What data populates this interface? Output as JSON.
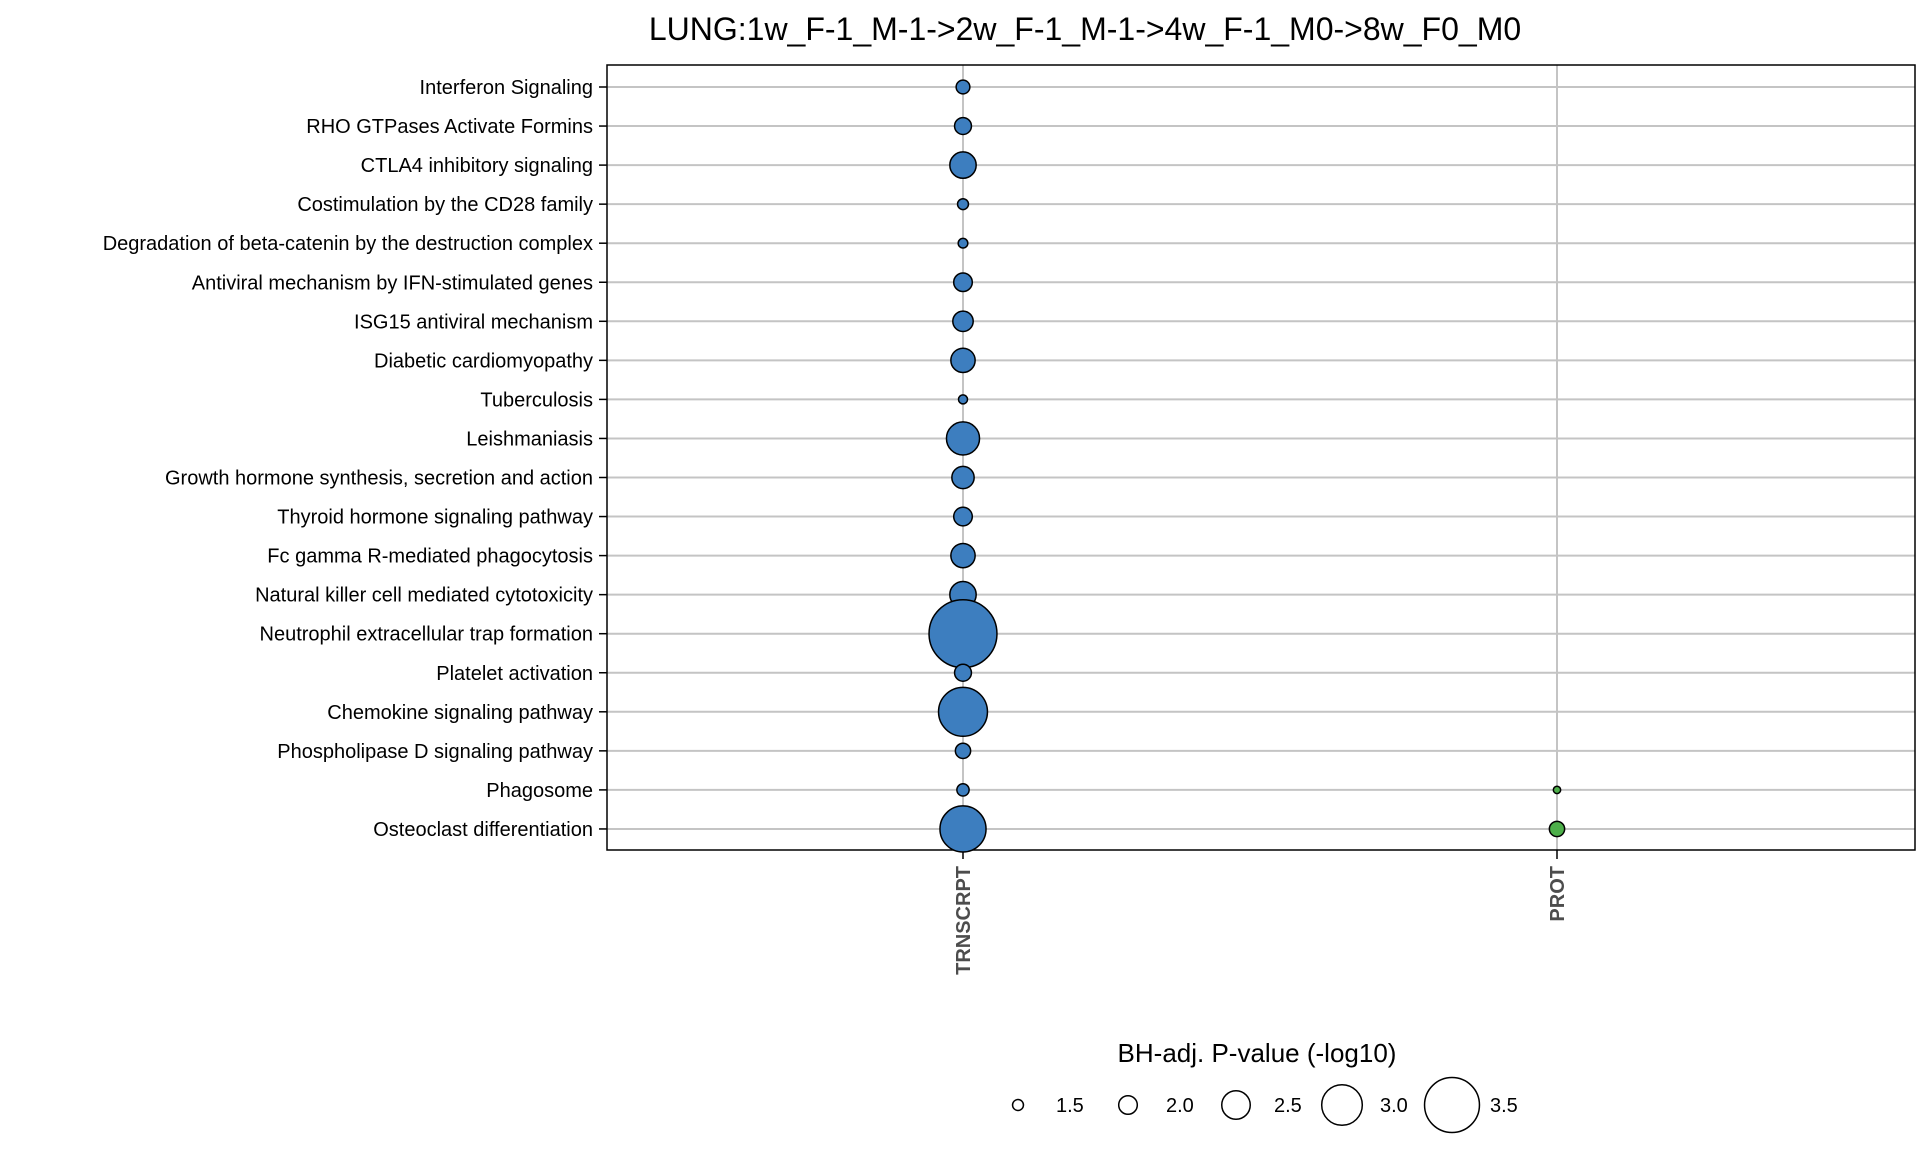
{
  "chart_data": {
    "type": "scatter",
    "title": "LUNG:1w_F-1_M-1->2w_F-1_M-1->4w_F-1_M0->8w_F0_M0",
    "xlabel": "",
    "ylabel": "",
    "categories_x": [
      "TRNSCRPT",
      "PROT"
    ],
    "categories_y": [
      "Interferon Signaling",
      "RHO GTPases Activate Formins",
      "CTLA4 inhibitory signaling",
      "Costimulation by the CD28 family",
      "Degradation of beta-catenin by the destruction complex",
      "Antiviral mechanism by IFN-stimulated genes",
      "ISG15 antiviral mechanism",
      "Diabetic cardiomyopathy",
      "Tuberculosis",
      "Leishmaniasis",
      "Growth hormone synthesis, secretion and action",
      "Thyroid hormone signaling pathway",
      "Fc gamma R-mediated phagocytosis",
      "Natural killer cell mediated cytotoxicity",
      "Neutrophil extracellular trap formation",
      "Platelet activation",
      "Chemokine signaling pathway",
      "Phospholipase D signaling pathway",
      "Phagosome",
      "Osteoclast differentiation"
    ],
    "points": [
      {
        "x": "TRNSCRPT",
        "y": "Interferon Signaling",
        "size": 1.7,
        "color": "#3d7ebf"
      },
      {
        "x": "TRNSCRPT",
        "y": "RHO GTPases Activate Formins",
        "size": 1.9,
        "color": "#3d7ebf"
      },
      {
        "x": "TRNSCRPT",
        "y": "CTLA4 inhibitory signaling",
        "size": 2.4,
        "color": "#3d7ebf"
      },
      {
        "x": "TRNSCRPT",
        "y": "Costimulation by the CD28 family",
        "size": 1.5,
        "color": "#3d7ebf"
      },
      {
        "x": "TRNSCRPT",
        "y": "Degradation of beta-catenin by the destruction complex",
        "size": 1.4,
        "color": "#3d7ebf"
      },
      {
        "x": "TRNSCRPT",
        "y": "Antiviral mechanism by IFN-stimulated genes",
        "size": 2.0,
        "color": "#3d7ebf"
      },
      {
        "x": "TRNSCRPT",
        "y": "ISG15 antiviral mechanism",
        "size": 2.1,
        "color": "#3d7ebf"
      },
      {
        "x": "TRNSCRPT",
        "y": "Diabetic cardiomyopathy",
        "size": 2.3,
        "color": "#3d7ebf"
      },
      {
        "x": "TRNSCRPT",
        "y": "Tuberculosis",
        "size": 1.35,
        "color": "#3d7ebf"
      },
      {
        "x": "TRNSCRPT",
        "y": "Leishmaniasis",
        "size": 2.7,
        "color": "#3d7ebf"
      },
      {
        "x": "TRNSCRPT",
        "y": "Growth hormone synthesis, secretion and action",
        "size": 2.2,
        "color": "#3d7ebf"
      },
      {
        "x": "TRNSCRPT",
        "y": "Thyroid hormone signaling pathway",
        "size": 2.0,
        "color": "#3d7ebf"
      },
      {
        "x": "TRNSCRPT",
        "y": "Fc gamma R-mediated phagocytosis",
        "size": 2.3,
        "color": "#3d7ebf"
      },
      {
        "x": "TRNSCRPT",
        "y": "Natural killer cell mediated cytotoxicity",
        "size": 2.4,
        "color": "#3d7ebf"
      },
      {
        "x": "TRNSCRPT",
        "y": "Neutrophil extracellular trap formation",
        "size": 3.9,
        "color": "#3d7ebf"
      },
      {
        "x": "TRNSCRPT",
        "y": "Platelet activation",
        "size": 1.9,
        "color": "#3d7ebf"
      },
      {
        "x": "TRNSCRPT",
        "y": "Chemokine signaling pathway",
        "size": 3.3,
        "color": "#3d7ebf"
      },
      {
        "x": "TRNSCRPT",
        "y": "Phospholipase D signaling pathway",
        "size": 1.8,
        "color": "#3d7ebf"
      },
      {
        "x": "TRNSCRPT",
        "y": "Phagosome",
        "size": 1.6,
        "color": "#3d7ebf"
      },
      {
        "x": "TRNSCRPT",
        "y": "Osteoclast differentiation",
        "size": 3.2,
        "color": "#3d7ebf"
      },
      {
        "x": "PROT",
        "y": "Phagosome",
        "size": 1.2,
        "color": "#4daf4a"
      },
      {
        "x": "PROT",
        "y": "Osteoclast differentiation",
        "size": 1.8,
        "color": "#4daf4a"
      }
    ],
    "legend": {
      "title": "BH-adj. P-value (-log10)",
      "position": "bottom",
      "entries": [
        "1.5",
        "2.0",
        "2.5",
        "3.0",
        "3.5"
      ],
      "values": [
        1.5,
        2.0,
        2.5,
        3.0,
        3.5
      ]
    },
    "grid": true
  }
}
